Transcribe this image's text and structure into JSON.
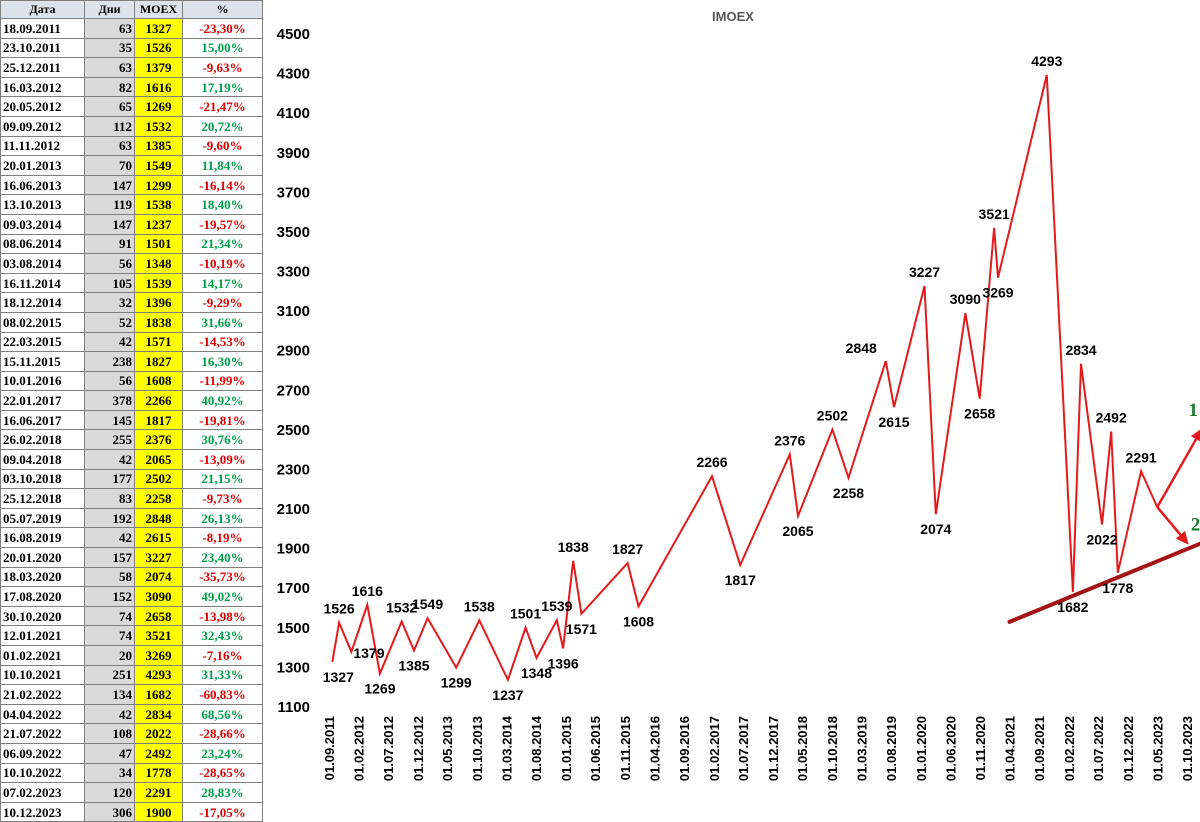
{
  "table": {
    "headers": [
      "Дата",
      "Дни",
      "MOEX",
      "%"
    ],
    "rows": [
      {
        "date": "18.09.2011",
        "days": "63",
        "moex": "1327",
        "pct": "-23,30%"
      },
      {
        "date": "23.10.2011",
        "days": "35",
        "moex": "1526",
        "pct": "15,00%"
      },
      {
        "date": "25.12.2011",
        "days": "63",
        "moex": "1379",
        "pct": "-9,63%"
      },
      {
        "date": "16.03.2012",
        "days": "82",
        "moex": "1616",
        "pct": "17,19%"
      },
      {
        "date": "20.05.2012",
        "days": "65",
        "moex": "1269",
        "pct": "-21,47%"
      },
      {
        "date": "09.09.2012",
        "days": "112",
        "moex": "1532",
        "pct": "20,72%"
      },
      {
        "date": "11.11.2012",
        "days": "63",
        "moex": "1385",
        "pct": "-9,60%"
      },
      {
        "date": "20.01.2013",
        "days": "70",
        "moex": "1549",
        "pct": "11,84%"
      },
      {
        "date": "16.06.2013",
        "days": "147",
        "moex": "1299",
        "pct": "-16,14%"
      },
      {
        "date": "13.10.2013",
        "days": "119",
        "moex": "1538",
        "pct": "18,40%"
      },
      {
        "date": "09.03.2014",
        "days": "147",
        "moex": "1237",
        "pct": "-19,57%"
      },
      {
        "date": "08.06.2014",
        "days": "91",
        "moex": "1501",
        "pct": "21,34%"
      },
      {
        "date": "03.08.2014",
        "days": "56",
        "moex": "1348",
        "pct": "-10,19%"
      },
      {
        "date": "16.11.2014",
        "days": "105",
        "moex": "1539",
        "pct": "14,17%"
      },
      {
        "date": "18.12.2014",
        "days": "32",
        "moex": "1396",
        "pct": "-9,29%"
      },
      {
        "date": "08.02.2015",
        "days": "52",
        "moex": "1838",
        "pct": "31,66%"
      },
      {
        "date": "22.03.2015",
        "days": "42",
        "moex": "1571",
        "pct": "-14,53%"
      },
      {
        "date": "15.11.2015",
        "days": "238",
        "moex": "1827",
        "pct": "16,30%"
      },
      {
        "date": "10.01.2016",
        "days": "56",
        "moex": "1608",
        "pct": "-11,99%"
      },
      {
        "date": "22.01.2017",
        "days": "378",
        "moex": "2266",
        "pct": "40,92%"
      },
      {
        "date": "16.06.2017",
        "days": "145",
        "moex": "1817",
        "pct": "-19,81%"
      },
      {
        "date": "26.02.2018",
        "days": "255",
        "moex": "2376",
        "pct": "30,76%"
      },
      {
        "date": "09.04.2018",
        "days": "42",
        "moex": "2065",
        "pct": "-13,09%"
      },
      {
        "date": "03.10.2018",
        "days": "177",
        "moex": "2502",
        "pct": "21,15%"
      },
      {
        "date": "25.12.2018",
        "days": "83",
        "moex": "2258",
        "pct": "-9,73%"
      },
      {
        "date": "05.07.2019",
        "days": "192",
        "moex": "2848",
        "pct": "26,13%"
      },
      {
        "date": "16.08.2019",
        "days": "42",
        "moex": "2615",
        "pct": "-8,19%"
      },
      {
        "date": "20.01.2020",
        "days": "157",
        "moex": "3227",
        "pct": "23,40%"
      },
      {
        "date": "18.03.2020",
        "days": "58",
        "moex": "2074",
        "pct": "-35,73%"
      },
      {
        "date": "17.08.2020",
        "days": "152",
        "moex": "3090",
        "pct": "49,02%"
      },
      {
        "date": "30.10.2020",
        "days": "74",
        "moex": "2658",
        "pct": "-13,98%"
      },
      {
        "date": "12.01.2021",
        "days": "74",
        "moex": "3521",
        "pct": "32,43%"
      },
      {
        "date": "01.02.2021",
        "days": "20",
        "moex": "3269",
        "pct": "-7,16%"
      },
      {
        "date": "10.10.2021",
        "days": "251",
        "moex": "4293",
        "pct": "31,33%"
      },
      {
        "date": "21.02.2022",
        "days": "134",
        "moex": "1682",
        "pct": "-60,83%"
      },
      {
        "date": "04.04.2022",
        "days": "42",
        "moex": "2834",
        "pct": "68,56%"
      },
      {
        "date": "21.07.2022",
        "days": "108",
        "moex": "2022",
        "pct": "-28,66%"
      },
      {
        "date": "06.09.2022",
        "days": "47",
        "moex": "2492",
        "pct": "23,24%"
      },
      {
        "date": "10.10.2022",
        "days": "34",
        "moex": "1778",
        "pct": "-28,65%"
      },
      {
        "date": "07.02.2023",
        "days": "120",
        "moex": "2291",
        "pct": "28,83%"
      },
      {
        "date": "10.12.2023",
        "days": "306",
        "moex": "1900",
        "pct": "-17,05%"
      }
    ]
  },
  "chart_data": {
    "type": "line",
    "title": "IMOEX",
    "xlabel": "",
    "ylabel": "",
    "ylim": [
      1100,
      4500
    ],
    "y_ticks": [
      1100,
      1300,
      1500,
      1700,
      1900,
      2100,
      2300,
      2500,
      2700,
      2900,
      3100,
      3300,
      3500,
      3700,
      3900,
      4100,
      4300,
      4500
    ],
    "x_ticks": [
      "01.09.2011",
      "01.02.2012",
      "01.07.2012",
      "01.12.2012",
      "01.05.2013",
      "01.10.2013",
      "01.03.2014",
      "01.08.2014",
      "01.01.2015",
      "01.06.2015",
      "01.11.2015",
      "01.04.2016",
      "01.09.2016",
      "01.02.2017",
      "01.07.2017",
      "01.12.2017",
      "01.05.2018",
      "01.10.2018",
      "01.03.2019",
      "01.08.2019",
      "01.01.2020",
      "01.06.2020",
      "01.11.2020",
      "01.04.2021",
      "01.09.2021",
      "01.02.2022",
      "01.07.2022",
      "01.12.2022",
      "01.05.2023",
      "01.10.2023"
    ],
    "grid": false,
    "legend": "none",
    "series": [
      {
        "color": "#e31a1c",
        "points": [
          {
            "date": "2011-09-18",
            "value": 1327
          },
          {
            "date": "2011-10-23",
            "value": 1526
          },
          {
            "date": "2011-12-25",
            "value": 1379
          },
          {
            "date": "2012-03-16",
            "value": 1616
          },
          {
            "date": "2012-05-20",
            "value": 1269
          },
          {
            "date": "2012-09-09",
            "value": 1532
          },
          {
            "date": "2012-11-11",
            "value": 1385
          },
          {
            "date": "2013-01-20",
            "value": 1549
          },
          {
            "date": "2013-06-16",
            "value": 1299
          },
          {
            "date": "2013-10-13",
            "value": 1538
          },
          {
            "date": "2014-03-09",
            "value": 1237
          },
          {
            "date": "2014-06-08",
            "value": 1501
          },
          {
            "date": "2014-08-03",
            "value": 1348
          },
          {
            "date": "2014-11-16",
            "value": 1539
          },
          {
            "date": "2014-12-18",
            "value": 1396
          },
          {
            "date": "2015-02-08",
            "value": 1838
          },
          {
            "date": "2015-03-22",
            "value": 1571
          },
          {
            "date": "2015-11-15",
            "value": 1827
          },
          {
            "date": "2016-01-10",
            "value": 1608
          },
          {
            "date": "2017-01-22",
            "value": 2266
          },
          {
            "date": "2017-06-16",
            "value": 1817
          },
          {
            "date": "2018-02-26",
            "value": 2376
          },
          {
            "date": "2018-04-09",
            "value": 2065
          },
          {
            "date": "2018-10-03",
            "value": 2502
          },
          {
            "date": "2018-12-25",
            "value": 2258
          },
          {
            "date": "2019-07-05",
            "value": 2848
          },
          {
            "date": "2019-08-16",
            "value": 2615
          },
          {
            "date": "2020-01-20",
            "value": 3227
          },
          {
            "date": "2020-03-18",
            "value": 2074
          },
          {
            "date": "2020-08-17",
            "value": 3090
          },
          {
            "date": "2020-10-30",
            "value": 2658
          },
          {
            "date": "2021-01-12",
            "value": 3521
          },
          {
            "date": "2021-02-01",
            "value": 3269
          },
          {
            "date": "2021-10-10",
            "value": 4293
          },
          {
            "date": "2022-02-21",
            "value": 1682
          },
          {
            "date": "2022-04-04",
            "value": 2834
          },
          {
            "date": "2022-07-21",
            "value": 2022
          },
          {
            "date": "2022-09-06",
            "value": 2492
          },
          {
            "date": "2022-10-10",
            "value": 1778
          },
          {
            "date": "2023-02-07",
            "value": 2291
          },
          {
            "date": "2023-05-01",
            "value": 2110
          }
        ]
      }
    ],
    "data_labels": [
      {
        "text": "1327",
        "date": "2011-09-18",
        "value": 1327,
        "pos": "below"
      },
      {
        "text": "1526",
        "date": "2011-10-23",
        "value": 1526,
        "pos": "above"
      },
      {
        "text": "1379",
        "date": "2011-12-25",
        "value": 1379,
        "pos": "right"
      },
      {
        "text": "1616",
        "date": "2012-03-16",
        "value": 1616,
        "pos": "above"
      },
      {
        "text": "1269",
        "date": "2012-05-20",
        "value": 1269,
        "pos": "below"
      },
      {
        "text": "1532",
        "date": "2012-09-09",
        "value": 1532,
        "pos": "above"
      },
      {
        "text": "1385",
        "date": "2012-11-11",
        "value": 1385,
        "pos": "below"
      },
      {
        "text": "1549",
        "date": "2013-01-20",
        "value": 1549,
        "pos": "above"
      },
      {
        "text": "1299",
        "date": "2013-06-16",
        "value": 1299,
        "pos": "below"
      },
      {
        "text": "1538",
        "date": "2013-10-13",
        "value": 1538,
        "pos": "above"
      },
      {
        "text": "1237",
        "date": "2014-03-09",
        "value": 1237,
        "pos": "below"
      },
      {
        "text": "1501",
        "date": "2014-06-08",
        "value": 1501,
        "pos": "above"
      },
      {
        "text": "1348",
        "date": "2014-08-03",
        "value": 1348,
        "pos": "below"
      },
      {
        "text": "1539",
        "date": "2014-11-16",
        "value": 1539,
        "pos": "above"
      },
      {
        "text": "1396",
        "date": "2014-12-18",
        "value": 1396,
        "pos": "below"
      },
      {
        "text": "1838",
        "date": "2015-02-08",
        "value": 1838,
        "pos": "above"
      },
      {
        "text": "1571",
        "date": "2015-03-22",
        "value": 1571,
        "pos": "below"
      },
      {
        "text": "1827",
        "date": "2015-11-15",
        "value": 1827,
        "pos": "above"
      },
      {
        "text": "1608",
        "date": "2016-01-10",
        "value": 1608,
        "pos": "below"
      },
      {
        "text": "2266",
        "date": "2017-01-22",
        "value": 2266,
        "pos": "above"
      },
      {
        "text": "1817",
        "date": "2017-06-16",
        "value": 1817,
        "pos": "below"
      },
      {
        "text": "2376",
        "date": "2018-02-26",
        "value": 2376,
        "pos": "above"
      },
      {
        "text": "2065",
        "date": "2018-04-09",
        "value": 2065,
        "pos": "below"
      },
      {
        "text": "2502",
        "date": "2018-10-03",
        "value": 2502,
        "pos": "above"
      },
      {
        "text": "2258",
        "date": "2018-12-25",
        "value": 2258,
        "pos": "below"
      },
      {
        "text": "2848",
        "date": "2019-07-05",
        "value": 2848,
        "pos": "left"
      },
      {
        "text": "2615",
        "date": "2019-08-16",
        "value": 2615,
        "pos": "below"
      },
      {
        "text": "3227",
        "date": "2020-01-20",
        "value": 3227,
        "pos": "above"
      },
      {
        "text": "2074",
        "date": "2020-03-18",
        "value": 2074,
        "pos": "below"
      },
      {
        "text": "3090",
        "date": "2020-08-17",
        "value": 3090,
        "pos": "above"
      },
      {
        "text": "2658",
        "date": "2020-10-30",
        "value": 2658,
        "pos": "below"
      },
      {
        "text": "3521",
        "date": "2021-01-12",
        "value": 3521,
        "pos": "above"
      },
      {
        "text": "3269",
        "date": "2021-02-01",
        "value": 3269,
        "pos": "below"
      },
      {
        "text": "4293",
        "date": "2021-10-10",
        "value": 4293,
        "pos": "above"
      },
      {
        "text": "1682",
        "date": "2022-02-21",
        "value": 1682,
        "pos": "below"
      },
      {
        "text": "2834",
        "date": "2022-04-04",
        "value": 2834,
        "pos": "above"
      },
      {
        "text": "2022",
        "date": "2022-07-21",
        "value": 2022,
        "pos": "below"
      },
      {
        "text": "2492",
        "date": "2022-09-06",
        "value": 2492,
        "pos": "above"
      },
      {
        "text": "1778",
        "date": "2022-10-10",
        "value": 1778,
        "pos": "below"
      },
      {
        "text": "2291",
        "date": "2023-02-07",
        "value": 2291,
        "pos": "above"
      }
    ],
    "trendline": {
      "color": "#a31515",
      "from": {
        "date": "2021-04-01",
        "value": 1530
      },
      "to": {
        "date": "2023-12-20",
        "value": 1930
      }
    },
    "arrows": [
      {
        "label": "1",
        "color": "#e31a1c",
        "label_color": "#1a7a2e",
        "from": {
          "date": "2023-05-01",
          "value": 2110
        },
        "to": {
          "date": "2023-12-20",
          "value": 2510
        }
      },
      {
        "label": "2",
        "color": "#e31a1c",
        "label_color": "#1a7a2e",
        "from": {
          "date": "2023-05-01",
          "value": 2110
        },
        "to": {
          "date": "2023-10-10",
          "value": 1920
        }
      }
    ]
  }
}
